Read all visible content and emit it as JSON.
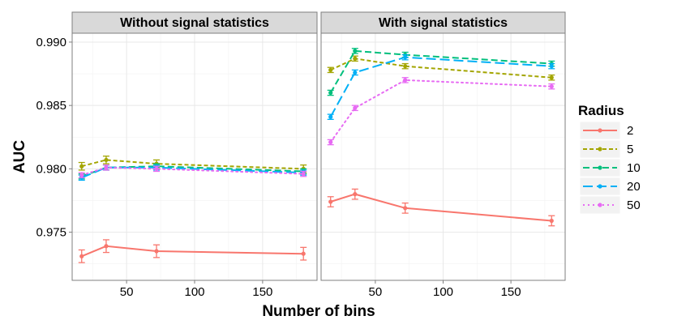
{
  "chart_data": {
    "type": "line",
    "xlabel": "Number of bins",
    "ylabel": "AUC",
    "xlim": [
      10,
      190
    ],
    "ylim": [
      0.9712,
      0.9907
    ],
    "xticks": [
      50,
      100,
      150
    ],
    "yticks": [
      0.975,
      0.98,
      0.985,
      0.99
    ],
    "ytick_labels": [
      "0.975",
      "0.980",
      "0.985",
      "0.990"
    ],
    "grid": true,
    "legend": {
      "title": "Radius",
      "position": "right",
      "entries": [
        "2",
        "5",
        "10",
        "20",
        "50"
      ]
    },
    "x": [
      17,
      35,
      72,
      180
    ],
    "panels": [
      {
        "title": "Without signal statistics",
        "series": [
          {
            "name": "2",
            "values": [
              0.9731,
              0.9739,
              0.9735,
              0.9733
            ],
            "errors": [
              0.0005,
              0.0005,
              0.0005,
              0.0005
            ]
          },
          {
            "name": "5",
            "values": [
              0.9802,
              0.9807,
              0.9804,
              0.98
            ],
            "errors": [
              0.0003,
              0.0003,
              0.0003,
              0.0003
            ]
          },
          {
            "name": "10",
            "values": [
              0.9794,
              0.9801,
              0.9802,
              0.9798
            ],
            "errors": [
              0.0002,
              0.0002,
              0.0002,
              0.0002
            ]
          },
          {
            "name": "20",
            "values": [
              0.9793,
              0.9801,
              0.9801,
              0.9797
            ],
            "errors": [
              0.0002,
              0.0002,
              0.0002,
              0.0002
            ]
          },
          {
            "name": "50",
            "values": [
              0.9795,
              0.9801,
              0.98,
              0.9796
            ],
            "errors": [
              0.0002,
              0.0002,
              0.0002,
              0.0002
            ]
          }
        ]
      },
      {
        "title": "With signal statistics",
        "series": [
          {
            "name": "2",
            "values": [
              0.9774,
              0.978,
              0.9769,
              0.9759
            ],
            "errors": [
              0.0004,
              0.0004,
              0.0004,
              0.0004
            ]
          },
          {
            "name": "5",
            "values": [
              0.9878,
              0.9887,
              0.9881,
              0.9872
            ],
            "errors": [
              0.0002,
              0.0002,
              0.0002,
              0.0002
            ]
          },
          {
            "name": "10",
            "values": [
              0.986,
              0.9893,
              0.989,
              0.9883
            ],
            "errors": [
              0.0002,
              0.0002,
              0.0002,
              0.0002
            ]
          },
          {
            "name": "20",
            "values": [
              0.9841,
              0.9876,
              0.9888,
              0.9881
            ],
            "errors": [
              0.0002,
              0.0002,
              0.0002,
              0.0002
            ]
          },
          {
            "name": "50",
            "values": [
              0.9821,
              0.9848,
              0.987,
              0.9865
            ],
            "errors": [
              0.0002,
              0.0002,
              0.0002,
              0.0002
            ]
          }
        ]
      }
    ],
    "series_style": [
      {
        "name": "2",
        "color": "#F8766D",
        "dash": "solid"
      },
      {
        "name": "5",
        "color": "#A3A500",
        "dash": "dashed-short"
      },
      {
        "name": "10",
        "color": "#00BF7D",
        "dash": "dashed"
      },
      {
        "name": "20",
        "color": "#00B0F6",
        "dash": "dashed-long"
      },
      {
        "name": "50",
        "color": "#E76BF3",
        "dash": "dotted"
      }
    ]
  }
}
